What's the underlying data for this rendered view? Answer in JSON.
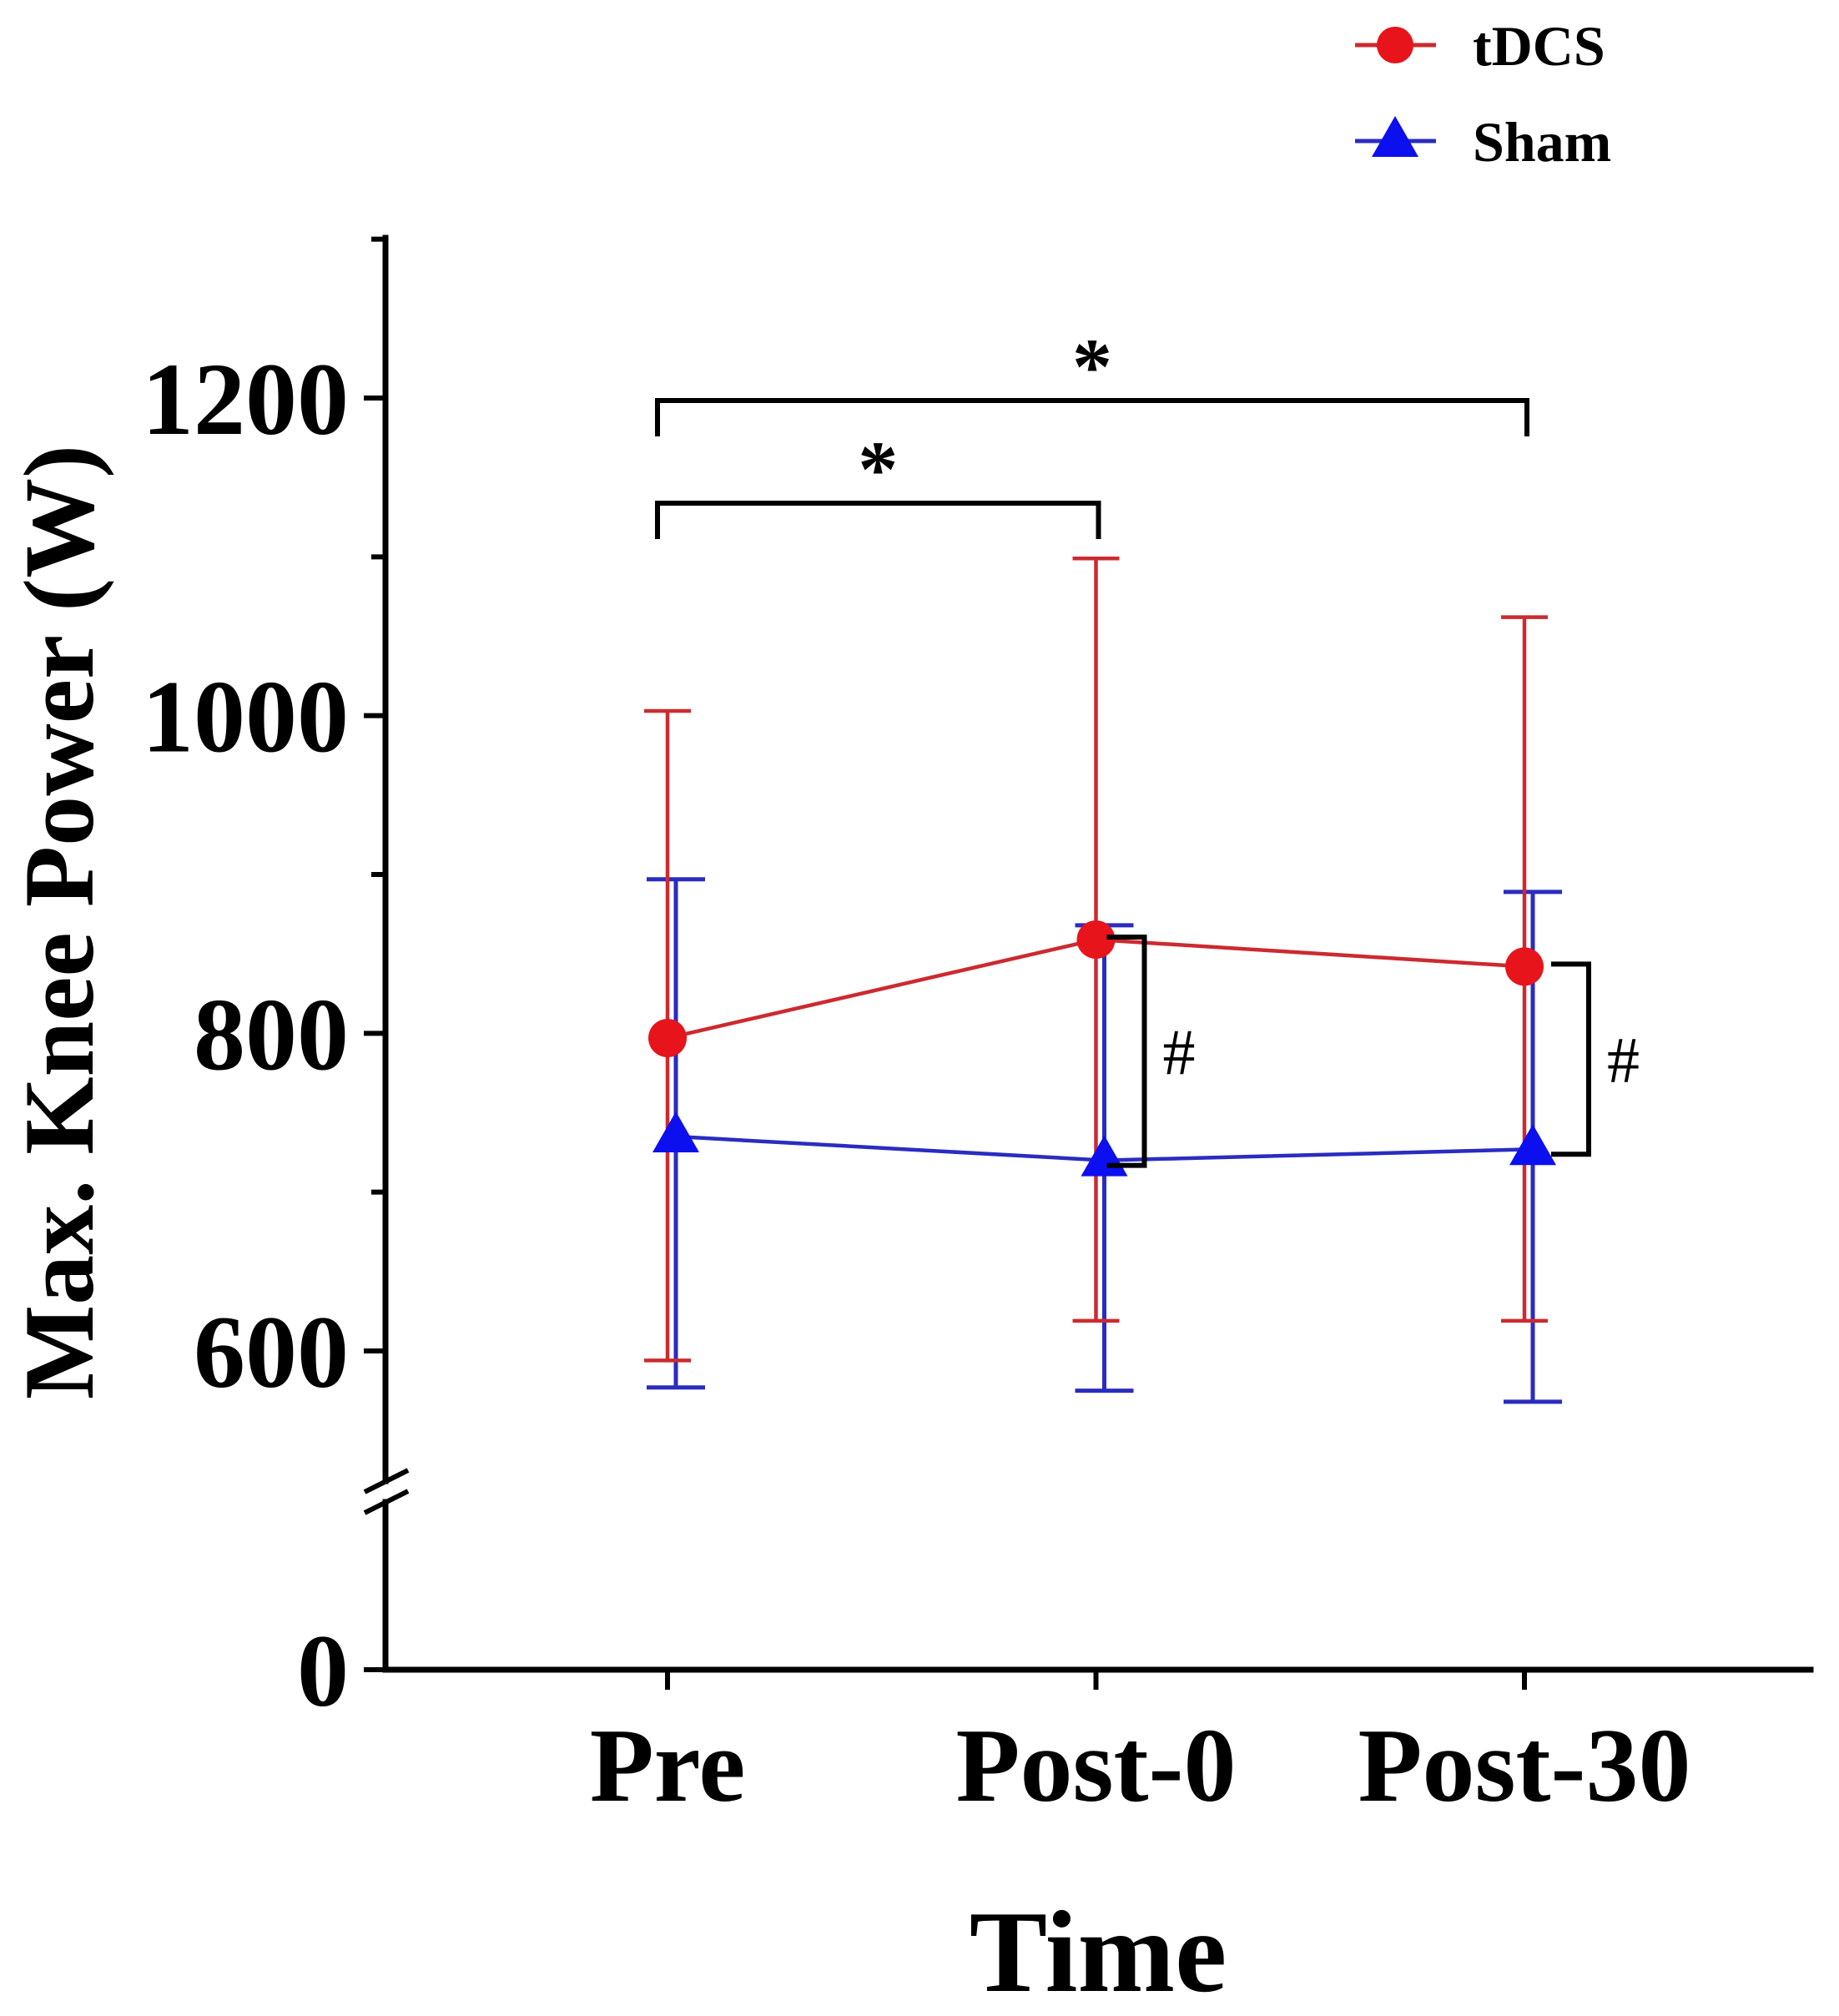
{
  "chart_data": {
    "type": "line",
    "xlabel": "Time",
    "ylabel": "Max. Knee Power (W)",
    "categories": [
      "Pre",
      "Post-0",
      "Post-30"
    ],
    "ylim": [
      0,
      1300
    ],
    "y_axis_break": [
      0,
      520
    ],
    "y_ticks": [
      {
        "value": 0,
        "label": "0"
      },
      {
        "value": 600,
        "label": "600"
      },
      {
        "value": 800,
        "label": "800"
      },
      {
        "value": 1000,
        "label": "1000"
      },
      {
        "value": 1200,
        "label": "1200"
      }
    ],
    "y_minor_ticks": [
      700,
      900,
      1100,
      1300
    ],
    "grid": false,
    "legend_position": "top-right",
    "series": [
      {
        "name": "tDCS",
        "color": "#e8141b",
        "line_color": "#cc2a2f",
        "values": [
          797,
          859,
          842
        ],
        "error_upper": [
          1003,
          1099,
          1062
        ],
        "error_lower": [
          594,
          619,
          619
        ]
      },
      {
        "name": "Sham",
        "color": "#0d10ee",
        "line_color": "#2a2cc0",
        "values": [
          735,
          720,
          727
        ],
        "error_upper": [
          897,
          868,
          889
        ],
        "error_lower": [
          577,
          575,
          568
        ]
      }
    ],
    "comparisons": [
      {
        "from_index": 0,
        "to_index": 2,
        "label": "*"
      },
      {
        "from_index": 0,
        "to_index": 1,
        "label": "*"
      }
    ],
    "group_differences": [
      {
        "category_index": 1,
        "label": "#"
      },
      {
        "category_index": 2,
        "label": "#"
      }
    ]
  }
}
